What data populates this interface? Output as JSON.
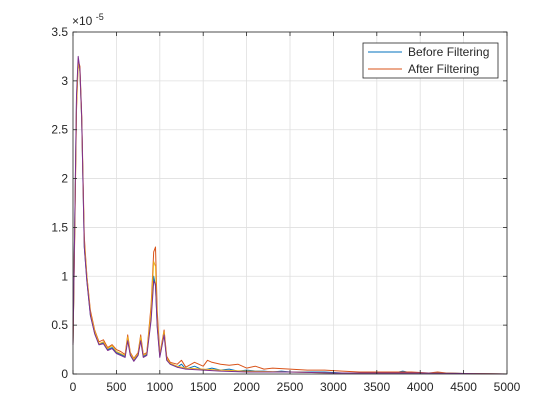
{
  "chart_data": {
    "type": "line",
    "title": "",
    "xlabel": "",
    "ylabel": "",
    "xlim": [
      0,
      5000
    ],
    "ylim": [
      0,
      3.5
    ],
    "y_exponent_label": "×10",
    "y_exponent_power": "-5",
    "xticks": [
      0,
      500,
      1000,
      1500,
      2000,
      2500,
      3000,
      3500,
      4000,
      4500,
      5000
    ],
    "xtick_labels": [
      "0",
      "500",
      "1000",
      "1500",
      "2000",
      "2500",
      "3000",
      "3500",
      "4000",
      "4500",
      "5000"
    ],
    "yticks": [
      0,
      0.5,
      1,
      1.5,
      2,
      2.5,
      3,
      3.5
    ],
    "ytick_labels": [
      "0",
      "0.5",
      "1",
      "1.5",
      "2",
      "2.5",
      "3",
      "3.5"
    ],
    "grid": true,
    "legend_position": "top-right",
    "series": [
      {
        "name": "Before Filtering",
        "color": "#0072BD",
        "x": [
          0,
          20,
          40,
          60,
          80,
          100,
          130,
          160,
          200,
          250,
          300,
          350,
          400,
          450,
          500,
          550,
          600,
          630,
          660,
          700,
          750,
          780,
          810,
          850,
          900,
          930,
          950,
          970,
          1000,
          1050,
          1080,
          1120,
          1200,
          1250,
          1300,
          1400,
          1500,
          1600,
          1700,
          1800,
          1900,
          2000,
          2100,
          2200,
          2300,
          2400,
          2500,
          2700,
          2900,
          3100,
          3300,
          3500,
          3700,
          3800,
          3900,
          4000,
          4200,
          4300,
          4500,
          5000
        ],
        "y": [
          0.3,
          1.5,
          2.8,
          3.2,
          3.1,
          2.6,
          1.3,
          0.95,
          0.6,
          0.42,
          0.3,
          0.32,
          0.25,
          0.27,
          0.22,
          0.2,
          0.18,
          0.36,
          0.2,
          0.14,
          0.2,
          0.36,
          0.18,
          0.2,
          0.6,
          1.0,
          0.9,
          0.5,
          0.18,
          0.42,
          0.15,
          0.1,
          0.07,
          0.1,
          0.05,
          0.08,
          0.04,
          0.06,
          0.04,
          0.05,
          0.03,
          0.04,
          0.03,
          0.03,
          0.02,
          0.03,
          0.02,
          0.02,
          0.02,
          0.01,
          0.01,
          0.01,
          0.01,
          0.03,
          0.01,
          0.01,
          0.01,
          0.01,
          0.005,
          0.0
        ]
      },
      {
        "name": "After Filtering",
        "color": "#D95319",
        "x": [
          0,
          20,
          40,
          60,
          80,
          100,
          130,
          160,
          200,
          250,
          300,
          350,
          400,
          450,
          500,
          550,
          600,
          630,
          660,
          700,
          750,
          780,
          810,
          850,
          900,
          930,
          950,
          970,
          1000,
          1050,
          1080,
          1120,
          1200,
          1250,
          1300,
          1400,
          1500,
          1550,
          1600,
          1700,
          1800,
          1900,
          2000,
          2100,
          2200,
          2300,
          2500,
          2700,
          2900,
          3100,
          3300,
          3500,
          3700,
          3900,
          4100,
          4200,
          4300,
          4500,
          5000
        ],
        "y": [
          0.3,
          1.4,
          2.7,
          3.2,
          3.15,
          2.65,
          1.4,
          1.0,
          0.65,
          0.45,
          0.33,
          0.35,
          0.27,
          0.3,
          0.25,
          0.23,
          0.2,
          0.4,
          0.22,
          0.16,
          0.22,
          0.4,
          0.2,
          0.22,
          0.7,
          1.25,
          1.3,
          0.65,
          0.2,
          0.45,
          0.18,
          0.12,
          0.1,
          0.14,
          0.07,
          0.12,
          0.08,
          0.14,
          0.12,
          0.1,
          0.09,
          0.1,
          0.06,
          0.08,
          0.05,
          0.06,
          0.05,
          0.04,
          0.04,
          0.03,
          0.02,
          0.02,
          0.02,
          0.02,
          0.01,
          0.02,
          0.01,
          0.005,
          0.0
        ]
      },
      {
        "color": "#EDB120",
        "x": [
          0,
          20,
          40,
          60,
          80,
          100,
          130,
          160,
          200,
          250,
          300,
          350,
          400,
          450,
          500,
          550,
          600,
          630,
          660,
          700,
          750,
          780,
          810,
          850,
          900,
          930,
          950,
          970,
          1000,
          1050,
          1080,
          1120,
          1200,
          1300,
          1500,
          1700,
          2000,
          2500,
          3000,
          4000,
          5000
        ],
        "y": [
          0.3,
          1.45,
          2.75,
          3.18,
          3.1,
          2.6,
          1.35,
          1.0,
          0.62,
          0.44,
          0.31,
          0.33,
          0.26,
          0.29,
          0.23,
          0.21,
          0.19,
          0.38,
          0.21,
          0.15,
          0.21,
          0.38,
          0.19,
          0.21,
          0.65,
          1.15,
          1.1,
          0.55,
          0.19,
          0.43,
          0.16,
          0.11,
          0.08,
          0.06,
          0.05,
          0.04,
          0.03,
          0.02,
          0.01,
          0.01,
          0.0
        ]
      },
      {
        "color": "#7E2F8E",
        "x": [
          0,
          20,
          40,
          60,
          80,
          100,
          130,
          160,
          200,
          250,
          300,
          350,
          400,
          450,
          500,
          550,
          600,
          630,
          660,
          700,
          750,
          780,
          810,
          850,
          900,
          930,
          950,
          970,
          1000,
          1050,
          1080,
          1120,
          1200,
          1300,
          1500,
          1700,
          2000,
          2500,
          3000,
          4000,
          5000
        ],
        "y": [
          0.3,
          1.5,
          2.85,
          3.25,
          3.12,
          2.62,
          1.3,
          0.95,
          0.6,
          0.41,
          0.3,
          0.31,
          0.24,
          0.26,
          0.21,
          0.19,
          0.17,
          0.34,
          0.19,
          0.13,
          0.19,
          0.34,
          0.17,
          0.19,
          0.55,
          0.95,
          0.92,
          0.48,
          0.17,
          0.4,
          0.14,
          0.1,
          0.07,
          0.05,
          0.04,
          0.03,
          0.02,
          0.02,
          0.01,
          0.01,
          0.0
        ]
      }
    ]
  }
}
